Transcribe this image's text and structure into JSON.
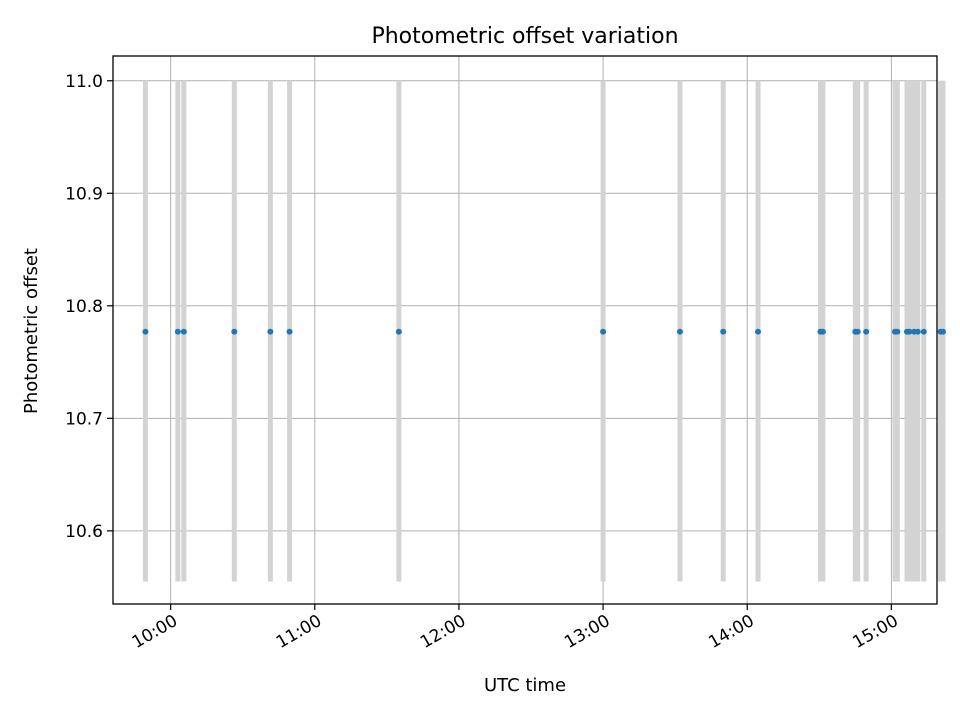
{
  "chart_data": {
    "type": "scatter",
    "title": "Photometric offset variation",
    "xlabel": "UTC time",
    "ylabel": "Photometric offset",
    "x_tick_labels": [
      "10:00",
      "11:00",
      "12:00",
      "13:00",
      "14:00",
      "15:00"
    ],
    "x_ticks_min": [
      600,
      660,
      720,
      780,
      840,
      900
    ],
    "xlim_min": [
      576,
      919
    ],
    "y_ticks": [
      10.6,
      10.7,
      10.8,
      10.9,
      11.0
    ],
    "y_tick_labels": [
      "10.6",
      "10.7",
      "10.8",
      "10.9",
      "11.0"
    ],
    "ylim": [
      10.535,
      11.022
    ],
    "grid": true,
    "vertical_band_range": [
      10.555,
      11.0
    ],
    "points_x_min": [
      589.5,
      603,
      605.5,
      626.5,
      641.5,
      649.5,
      695,
      780,
      812,
      830,
      844.5,
      870.5,
      871.5,
      885,
      886,
      889.5,
      901.5,
      902.5,
      906.5,
      907.5,
      909.5,
      911,
      913.5,
      920.5,
      921.5
    ],
    "points_y": [
      10.777,
      10.777,
      10.777,
      10.777,
      10.777,
      10.777,
      10.777,
      10.777,
      10.777,
      10.777,
      10.777,
      10.777,
      10.777,
      10.777,
      10.777,
      10.777,
      10.777,
      10.777,
      10.777,
      10.777,
      10.777,
      10.777,
      10.777,
      10.777,
      10.777
    ],
    "band_color": "#d3d3d3",
    "point_color": "#1f77b4",
    "grid_color": "#b0b0b0"
  }
}
